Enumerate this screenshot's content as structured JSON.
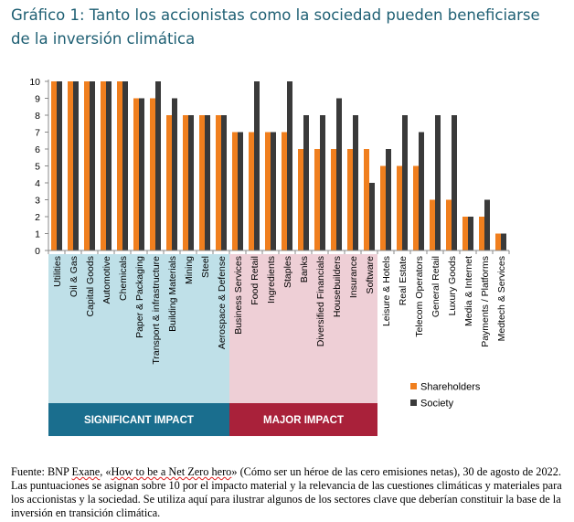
{
  "title_lines": [
    "Gráfico 1: Tanto los accionistas como la sociedad pueden beneficiarse",
    "de la inversión climática"
  ],
  "colors": {
    "title": "#1e5f73",
    "shareholders": "#f07f1e",
    "society": "#3a3a3a",
    "significant_bg": "#bfe0e8",
    "major_bg": "#eecfd6",
    "significant_band": "#1a6e8e",
    "major_band": "#a9213a"
  },
  "groups": [
    {
      "label": "SIGNIFICANT IMPACT",
      "from": 0,
      "to": 11
    },
    {
      "label": "MAJOR IMPACT",
      "from": 11,
      "to": 20
    }
  ],
  "chart_data": {
    "type": "bar",
    "title": "",
    "xlabel": "",
    "ylabel": "",
    "ylim": [
      0,
      10
    ],
    "yticks": [
      0,
      1,
      2,
      3,
      4,
      5,
      6,
      7,
      8,
      9,
      10
    ],
    "categories": [
      "Utilities",
      "Oil & Gas",
      "Capital Goods",
      "Automotive",
      "Chemicals",
      "Paper & Packaging",
      "Transport & infrastructure",
      "Building Materials",
      "Mining",
      "Steel",
      "Aerospace & Defense",
      "Business Services",
      "Food Retail",
      "Ingredients",
      "Staples",
      "Banks",
      "Diversified Financials",
      "Housebuilders",
      "Insurance",
      "Software",
      "Leisure & Hotels",
      "Real Estate",
      "Telecom Operators",
      "General Retail",
      "Luxury Goods",
      "Media & Internet",
      "Payments / Platforms",
      "Medtech & Services"
    ],
    "series": [
      {
        "name": "Shareholders",
        "values": [
          10,
          10,
          10,
          10,
          10,
          9,
          9,
          8,
          8,
          8,
          8,
          7,
          7,
          7,
          7,
          6,
          6,
          6,
          6,
          6,
          5,
          5,
          5,
          3,
          3,
          2,
          2,
          1
        ]
      },
      {
        "name": "Society",
        "values": [
          10,
          10,
          10,
          10,
          10,
          9,
          10,
          9,
          8,
          8,
          8,
          7,
          10,
          7,
          10,
          8,
          8,
          9,
          8,
          4,
          6,
          8,
          7,
          8,
          8,
          2,
          3,
          1
        ]
      }
    ],
    "legend": {
      "position": "bottom-right",
      "entries": [
        "Shareholders",
        "Society"
      ]
    }
  },
  "source": {
    "prefix": "Fuente: BNP ",
    "exane": "Exane",
    "mid": ", «",
    "link": "How to be a Net Zero hero",
    "rest": "» (Cómo ser un héroe de las cero emisiones netas), 30 de agosto de 2022. Las puntuaciones se asignan sobre 10 por el impacto material y la relevancia de las cuestiones climáticas y materiales para los accionistas y la sociedad. Se utiliza aquí para ilustrar algunos de los sectores clave que deberían constituir la base de la inversión en transición climática."
  }
}
